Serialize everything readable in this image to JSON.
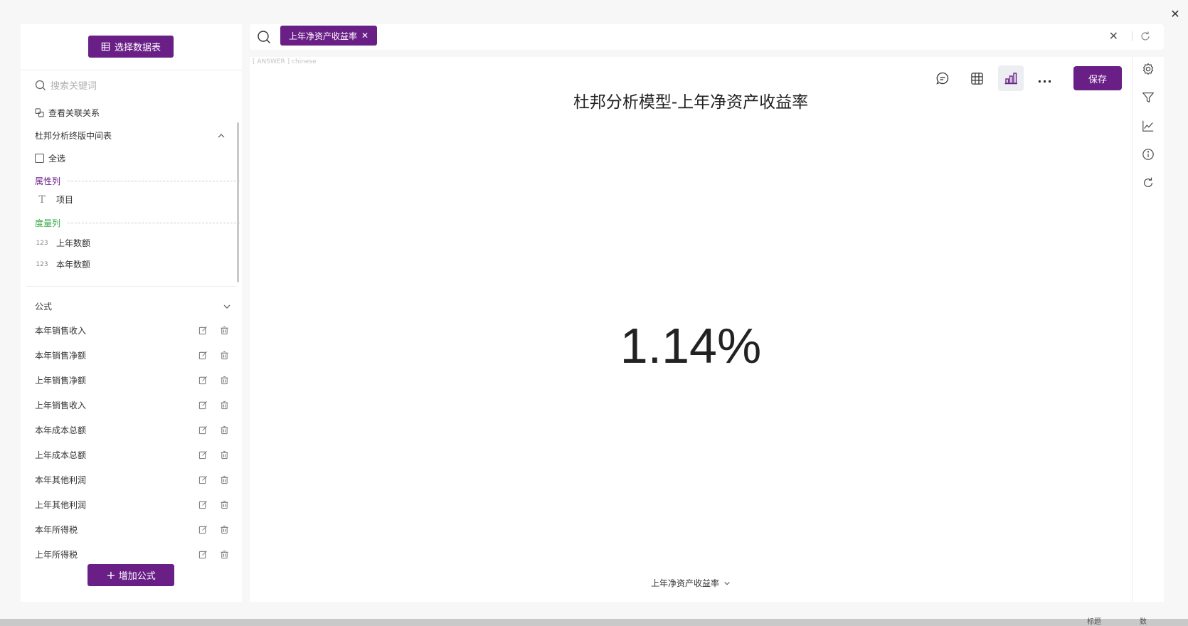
{
  "left_panel": {
    "select_table_label": "选择数据表",
    "search_placeholder": "搜索关键词",
    "view_relations_label": "查看关联关系",
    "table_name": "杜邦分析终版中间表",
    "select_all_label": "全选",
    "attribute_section_label": "属性列",
    "attribute_fields": [
      {
        "icon": "T",
        "name": "项目"
      }
    ],
    "measure_section_label": "度量列",
    "measure_fields": [
      {
        "icon": "123",
        "name": "上年数额"
      },
      {
        "icon": "123",
        "name": "本年数额"
      }
    ],
    "formula_section_label": "公式",
    "formulas": [
      "本年销售收入",
      "本年销售净额",
      "上年销售净额",
      "上年销售收入",
      "本年成本总额",
      "上年成本总额",
      "本年其他利润",
      "上年其他利润",
      "本年所得税",
      "上年所得税"
    ],
    "add_formula_label": "增加公式"
  },
  "search_bar": {
    "chip_label": "上年净资产收益率"
  },
  "main": {
    "answer_tag": "[ ANSWER ] chinese",
    "save_label": "保存",
    "more_label": "...",
    "chart_title": "杜邦分析模型-上年净资产收益率",
    "kpi_value": "1.14%",
    "measure_selector": "上年净资产收益率"
  },
  "bottom_fragments": [
    "标题",
    "数"
  ],
  "colors": {
    "accent": "#6a1f87",
    "attribute_label": "#6a1f87",
    "measure_label": "#3aaa4a"
  }
}
